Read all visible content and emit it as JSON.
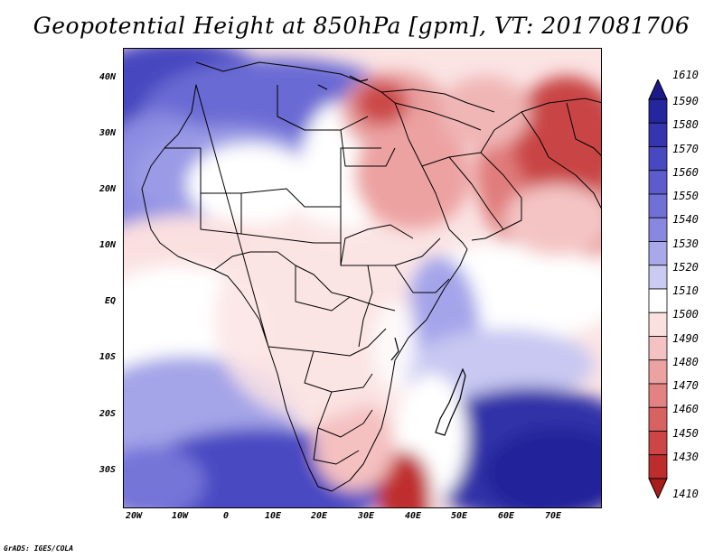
{
  "title": "Geopotential Height at 850hPa [gpm], VT: 2017081706",
  "credit": "GrADS: IGES/COLA",
  "map": {
    "lat_labels": [
      "40N",
      "30N",
      "20N",
      "10N",
      "EQ",
      "10S",
      "20S",
      "30S"
    ],
    "lon_labels": [
      "20W",
      "10W",
      "0",
      "10E",
      "20E",
      "30E",
      "40E",
      "50E",
      "60E",
      "70E"
    ],
    "lat_range_deg": [
      -37,
      45
    ],
    "lon_range_deg": [
      -23,
      79
    ]
  },
  "colorbar": {
    "labels": [
      "1610",
      "1590",
      "1580",
      "1570",
      "1560",
      "1550",
      "1540",
      "1530",
      "1520",
      "1510",
      "1500",
      "1490",
      "1480",
      "1470",
      "1460",
      "1450",
      "1430",
      "1410"
    ],
    "colors": [
      "#1a1a8c",
      "#25259e",
      "#3535b0",
      "#4848c0",
      "#5c5ccc",
      "#7070d6",
      "#8888e0",
      "#a8a8ea",
      "#cacaf3",
      "#ffffff",
      "#fbe0e0",
      "#f4c2c2",
      "#eda2a2",
      "#e38282",
      "#d86262",
      "#cd4545",
      "#bd2d2d",
      "#a81c1c"
    ]
  }
}
